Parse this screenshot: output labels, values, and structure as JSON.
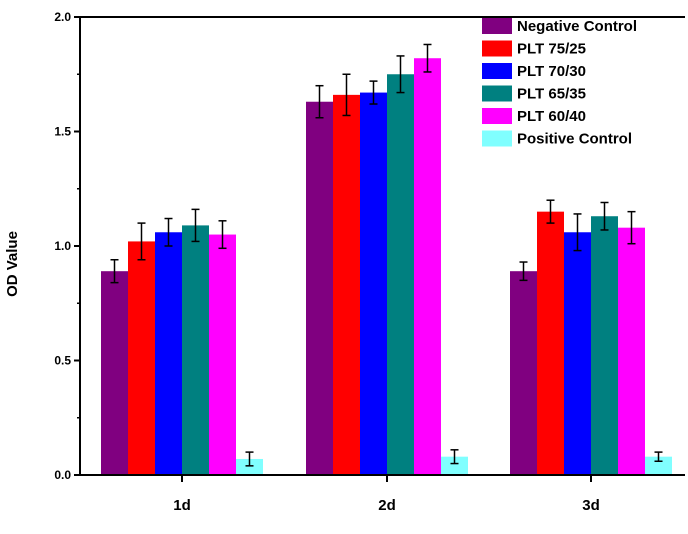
{
  "chart_data": {
    "type": "bar",
    "title": "",
    "xlabel": "",
    "ylabel": "OD Value",
    "ylim": [
      0,
      2.0
    ],
    "yticks": [
      "0.0",
      "0.5",
      "1.0",
      "1.5",
      "2.0"
    ],
    "categories": [
      "1d",
      "2d",
      "3d"
    ],
    "legend_position": "top-right",
    "series": [
      {
        "name": "Negative Control",
        "color": "#800080",
        "values": [
          0.89,
          1.63,
          0.89
        ],
        "errors": [
          0.05,
          0.07,
          0.04
        ]
      },
      {
        "name": "PLT 75/25",
        "color": "#ff0000",
        "values": [
          1.02,
          1.66,
          1.15
        ],
        "errors": [
          0.08,
          0.09,
          0.05
        ]
      },
      {
        "name": "PLT 70/30",
        "color": "#0000ff",
        "values": [
          1.06,
          1.67,
          1.06
        ],
        "errors": [
          0.06,
          0.05,
          0.08
        ]
      },
      {
        "name": "PLT 65/35",
        "color": "#008080",
        "values": [
          1.09,
          1.75,
          1.13
        ],
        "errors": [
          0.07,
          0.08,
          0.06
        ]
      },
      {
        "name": "PLT 60/40",
        "color": "#ff00ff",
        "values": [
          1.05,
          1.82,
          1.08
        ],
        "errors": [
          0.06,
          0.06,
          0.07
        ]
      },
      {
        "name": "Positive Control",
        "color": "#80ffff",
        "values": [
          0.07,
          0.08,
          0.08
        ],
        "errors": [
          0.03,
          0.03,
          0.02
        ]
      }
    ]
  }
}
